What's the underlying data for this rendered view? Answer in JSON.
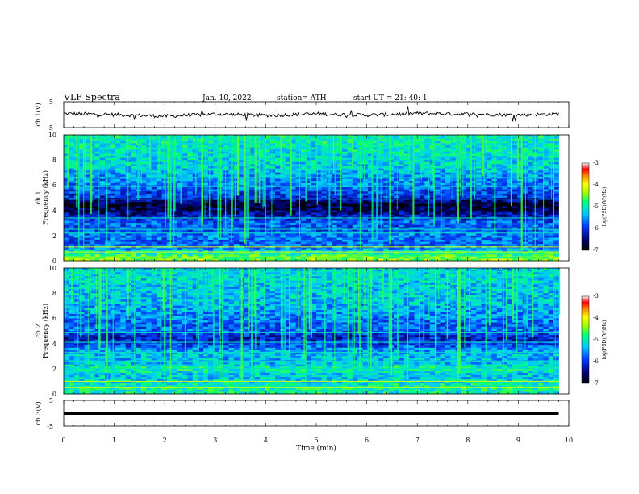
{
  "header": {
    "title": "VLF  Spectra",
    "date": "Jan. 10, 2022",
    "station": "station= ATH",
    "start_ut": "start  UT  =   21: 40: 1"
  },
  "colors": {
    "background": "#ffffff",
    "axis": "#000000",
    "spectrogram_low": "#000044",
    "spectrogram_mid": "#0050ff",
    "spectrogram_high": "#ff2000"
  },
  "chart_data": [
    {
      "type": "line",
      "panel": "ch1_waveform",
      "ylabel": "ch.1(V)",
      "ylim": [
        -5,
        5
      ],
      "y_ticks": [
        "5",
        "-5"
      ],
      "x": [
        0,
        1,
        2,
        3,
        4,
        5,
        6,
        7,
        8,
        9,
        9.8
      ],
      "series": [
        {
          "values": [
            0.4,
            0.0,
            -0.6,
            0.2,
            -0.3,
            0.3,
            -0.2,
            0.5,
            0.2,
            -0.1,
            0.3
          ]
        }
      ]
    },
    {
      "type": "heatmap",
      "panel": "ch1_spectrogram",
      "ylabel_line1": "ch.1",
      "ylabel_line2": "Frequency  (kHz)",
      "ylim": [
        0,
        10
      ],
      "y_ticks": [
        "0",
        "2",
        "4",
        "6",
        "8",
        "10"
      ],
      "colorbar_label": "log(PSD)(V²/Hz)",
      "colorbar_ticks": [
        "-3",
        "-4",
        "-5",
        "-6",
        "-7"
      ],
      "colorbar_range": [
        -7,
        -3
      ],
      "freq_profile_khz": [
        0,
        0.5,
        1,
        1.5,
        2,
        2.5,
        3,
        3.5,
        4,
        4.5,
        5,
        5.5,
        6,
        6.5,
        7,
        7.5,
        8,
        8.5,
        9,
        9.5,
        10
      ],
      "freq_profile_level": [
        -4.3,
        -4.8,
        -5.6,
        -5.8,
        -5.6,
        -5.9,
        -5.7,
        -6.2,
        -6.6,
        -6.8,
        -6.0,
        -5.9,
        -5.6,
        -5.6,
        -5.4,
        -5.2,
        -5.2,
        -5.1,
        -5.1,
        -5.0,
        -5.0
      ],
      "lines_khz": [
        0.3,
        0.7,
        1.1,
        2.2,
        2.5,
        3.4,
        4.9,
        5.9,
        6.6,
        9.7
      ]
    },
    {
      "type": "heatmap",
      "panel": "ch2_spectrogram",
      "ylabel_line1": "ch.2",
      "ylabel_line2": "Frequency  (kHz)",
      "ylim": [
        0,
        10
      ],
      "y_ticks": [
        "0",
        "2",
        "4",
        "6",
        "8",
        "10"
      ],
      "colorbar_label": "log(PSD)(V²/Hz)",
      "colorbar_ticks": [
        "-3",
        "-4",
        "-5",
        "-6",
        "-7"
      ],
      "colorbar_range": [
        -7,
        -3
      ],
      "freq_profile_khz": [
        0,
        0.5,
        1,
        1.5,
        2,
        2.5,
        3,
        3.5,
        4,
        4.5,
        5,
        5.5,
        6,
        6.5,
        7,
        7.5,
        8,
        8.5,
        9,
        9.5,
        10
      ],
      "freq_profile_level": [
        -5.0,
        -4.9,
        -5.2,
        -5.3,
        -4.9,
        -5.4,
        -5.3,
        -5.5,
        -6.0,
        -6.2,
        -5.7,
        -5.8,
        -5.6,
        -5.5,
        -5.4,
        -5.3,
        -5.3,
        -5.3,
        -5.2,
        -5.2,
        -5.2
      ],
      "lines_khz": [
        0.5,
        1.0,
        2.0,
        2.6,
        3.3,
        4.1,
        4.9,
        9.7
      ]
    },
    {
      "type": "line",
      "panel": "ch3_waveform",
      "ylabel": "ch.3(V)",
      "ylim": [
        -5,
        5
      ],
      "y_ticks": [
        "5",
        "-5"
      ],
      "x": [
        0,
        9.8
      ],
      "series": [
        {
          "values": [
            0,
            0
          ]
        }
      ]
    }
  ],
  "xaxis": {
    "label": "Time  (min)",
    "ticks": [
      "0",
      "1",
      "2",
      "3",
      "4",
      "5",
      "6",
      "7",
      "8",
      "9",
      "10"
    ],
    "xlim": [
      0,
      10
    ]
  }
}
